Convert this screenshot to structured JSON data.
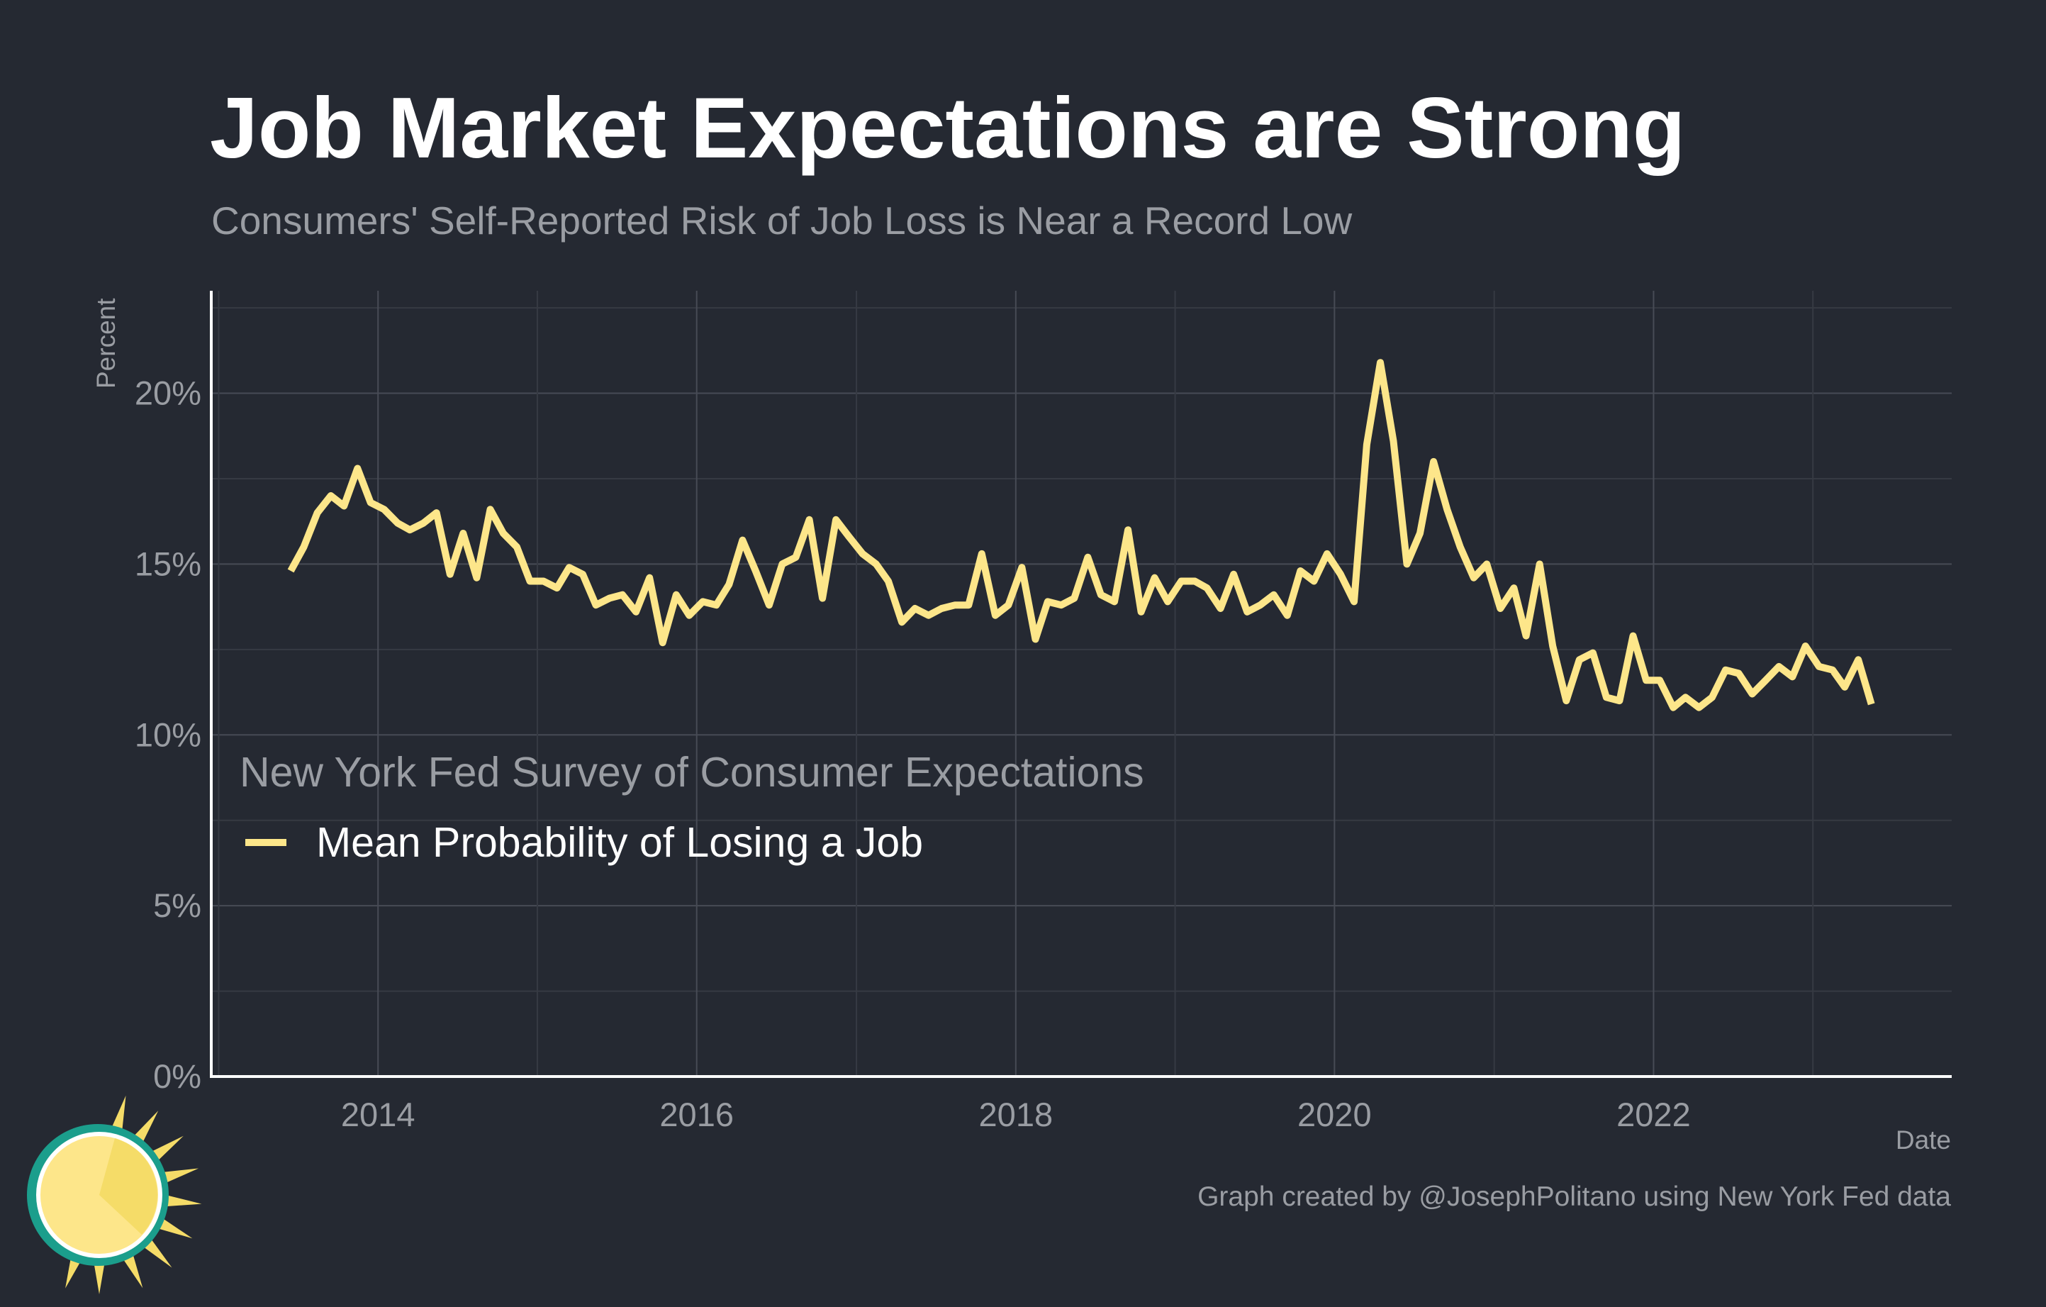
{
  "chart_data": {
    "type": "line",
    "title": "Job Market Expectations are Strong",
    "subtitle": "Consumers' Self-Reported Risk of Job Loss is Near a Record Low",
    "xlabel": "Date",
    "ylabel": "Percent",
    "xlim": [
      "2012-12-15",
      "2023-11-15"
    ],
    "ylim": [
      0,
      23
    ],
    "x_ticks": [
      {
        "date": "2014-01-01",
        "label": "2014"
      },
      {
        "date": "2016-01-01",
        "label": "2016"
      },
      {
        "date": "2018-01-01",
        "label": "2018"
      },
      {
        "date": "2020-01-01",
        "label": "2020"
      },
      {
        "date": "2022-01-01",
        "label": "2022"
      }
    ],
    "y_ticks": [
      {
        "value": 0,
        "label": "0%"
      },
      {
        "value": 5,
        "label": "5%"
      },
      {
        "value": 10,
        "label": "10%"
      },
      {
        "value": 15,
        "label": "15%"
      },
      {
        "value": 20,
        "label": "20%"
      }
    ],
    "grid": true,
    "legend": {
      "title": "New York Fed Survey of Consumer Expectations",
      "position": "bottom-left inside plot"
    },
    "series": [
      {
        "name": "Mean Probability of Losing a Job",
        "color": "#fde68a",
        "x": [
          "2013-06",
          "2013-07",
          "2013-08",
          "2013-09",
          "2013-10",
          "2013-11",
          "2013-12",
          "2014-01",
          "2014-02",
          "2014-03",
          "2014-04",
          "2014-05",
          "2014-06",
          "2014-07",
          "2014-08",
          "2014-09",
          "2014-10",
          "2014-11",
          "2014-12",
          "2015-01",
          "2015-02",
          "2015-03",
          "2015-04",
          "2015-05",
          "2015-06",
          "2015-07",
          "2015-08",
          "2015-09",
          "2015-10",
          "2015-11",
          "2015-12",
          "2016-01",
          "2016-02",
          "2016-03",
          "2016-04",
          "2016-05",
          "2016-06",
          "2016-07",
          "2016-08",
          "2016-09",
          "2016-10",
          "2016-11",
          "2016-12",
          "2017-01",
          "2017-02",
          "2017-03",
          "2017-04",
          "2017-05",
          "2017-06",
          "2017-07",
          "2017-08",
          "2017-09",
          "2017-10",
          "2017-11",
          "2017-12",
          "2018-01",
          "2018-02",
          "2018-03",
          "2018-04",
          "2018-05",
          "2018-06",
          "2018-07",
          "2018-08",
          "2018-09",
          "2018-10",
          "2018-11",
          "2018-12",
          "2019-01",
          "2019-02",
          "2019-03",
          "2019-04",
          "2019-05",
          "2019-06",
          "2019-07",
          "2019-08",
          "2019-09",
          "2019-10",
          "2019-11",
          "2019-12",
          "2020-01",
          "2020-02",
          "2020-03",
          "2020-04",
          "2020-05",
          "2020-06",
          "2020-07",
          "2020-08",
          "2020-09",
          "2020-10",
          "2020-11",
          "2020-12",
          "2021-01",
          "2021-02",
          "2021-03",
          "2021-04",
          "2021-05",
          "2021-06",
          "2021-07",
          "2021-08",
          "2021-09",
          "2021-10",
          "2021-11",
          "2021-12",
          "2022-01",
          "2022-02",
          "2022-03",
          "2022-04",
          "2022-05",
          "2022-06",
          "2022-07",
          "2022-08",
          "2022-09",
          "2022-10",
          "2022-11",
          "2022-12",
          "2023-01",
          "2023-02",
          "2023-03",
          "2023-04",
          "2023-05"
        ],
        "values": [
          14.8,
          15.5,
          16.5,
          17.0,
          16.7,
          17.8,
          16.8,
          16.6,
          16.2,
          16.0,
          16.2,
          16.5,
          14.7,
          15.9,
          14.6,
          16.6,
          15.9,
          15.5,
          14.5,
          14.5,
          14.3,
          14.9,
          14.7,
          13.8,
          14.0,
          14.1,
          13.6,
          14.6,
          12.7,
          14.1,
          13.5,
          13.9,
          13.8,
          14.4,
          15.7,
          14.8,
          13.8,
          15.0,
          15.2,
          16.3,
          14.0,
          16.3,
          15.8,
          15.3,
          15.0,
          14.5,
          13.3,
          13.7,
          13.5,
          13.7,
          13.8,
          13.8,
          15.3,
          13.5,
          13.8,
          14.9,
          12.8,
          13.9,
          13.8,
          14.0,
          15.2,
          14.1,
          13.9,
          16.0,
          13.6,
          14.6,
          13.9,
          14.5,
          14.5,
          14.3,
          13.7,
          14.7,
          13.6,
          13.8,
          14.1,
          13.5,
          14.8,
          14.5,
          15.3,
          14.7,
          13.9,
          18.5,
          20.9,
          18.6,
          15.0,
          15.9,
          18.0,
          16.6,
          15.5,
          14.6,
          15.0,
          13.7,
          14.3,
          12.9,
          15.0,
          12.6,
          11.0,
          12.2,
          12.4,
          11.1,
          11.0,
          12.9,
          11.6,
          11.6,
          10.8,
          11.1,
          10.8,
          11.1,
          11.9,
          11.8,
          11.2,
          11.6,
          12.0,
          11.7,
          12.6,
          12.0,
          11.9,
          11.4,
          12.2,
          10.9
        ]
      }
    ]
  },
  "caption": "Graph created by @JosephPolitano using New York Fed data",
  "logo": {
    "icon": "sun-logo-icon",
    "colors": [
      "#f5dc68",
      "#fde68a",
      "#1b9e8c"
    ]
  }
}
